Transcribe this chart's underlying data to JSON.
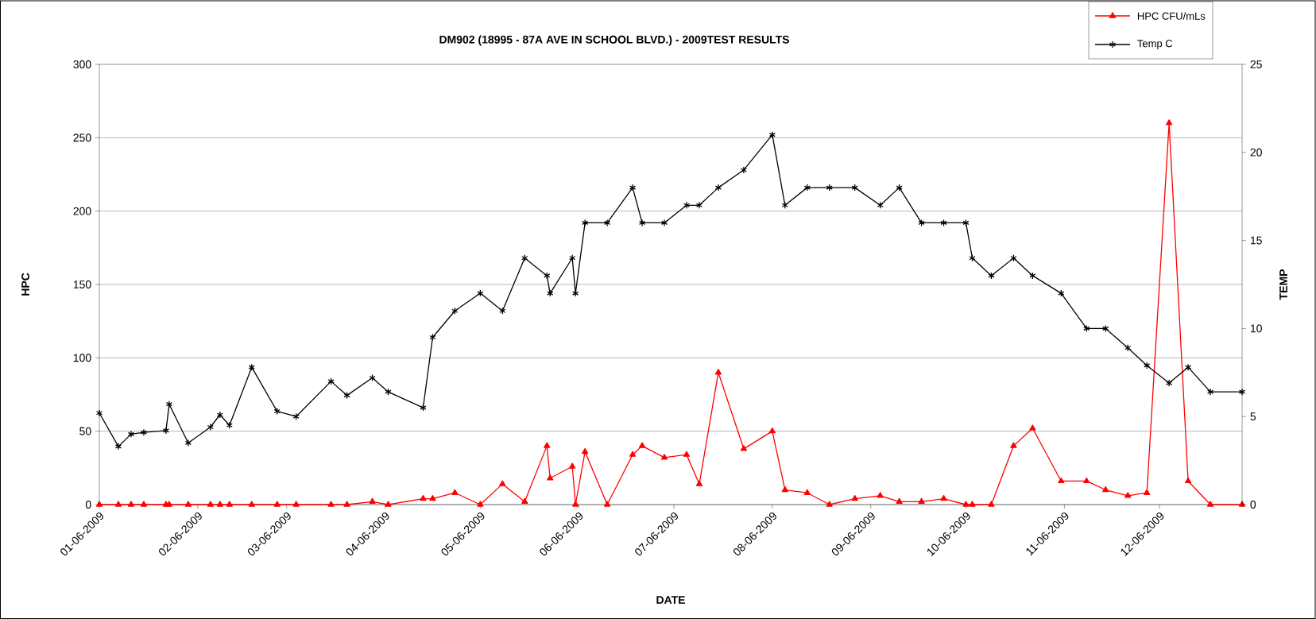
{
  "chart_data": {
    "type": "line",
    "title": "DM902 (18995 - 87A AVE IN SCHOOL BLVD.) - 2009TEST RESULTS",
    "xlabel": "DATE",
    "ylabel": "HPC",
    "y2label": "TEMP",
    "x": [
      "2009-01-06",
      "2009-01-12",
      "2009-01-16",
      "2009-01-20",
      "2009-01-27",
      "2009-01-28",
      "2009-02-03",
      "2009-02-10",
      "2009-02-13",
      "2009-02-16",
      "2009-02-23",
      "2009-03-03",
      "2009-03-09",
      "2009-03-20",
      "2009-03-25",
      "2009-04-02",
      "2009-04-07",
      "2009-04-18",
      "2009-04-21",
      "2009-04-28",
      "2009-05-06",
      "2009-05-13",
      "2009-05-20",
      "2009-05-27",
      "2009-05-28",
      "2009-06-04",
      "2009-06-05",
      "2009-06-08",
      "2009-06-15",
      "2009-06-23",
      "2009-06-26",
      "2009-07-03",
      "2009-07-10",
      "2009-07-14",
      "2009-07-20",
      "2009-07-28",
      "2009-08-06",
      "2009-08-10",
      "2009-08-17",
      "2009-08-24",
      "2009-09-01",
      "2009-09-09",
      "2009-09-15",
      "2009-09-22",
      "2009-09-29",
      "2009-10-06",
      "2009-10-08",
      "2009-10-14",
      "2009-10-21",
      "2009-10-27",
      "2009-11-05",
      "2009-11-13",
      "2009-11-19",
      "2009-11-26",
      "2009-12-02",
      "2009-12-09",
      "2009-12-15",
      "2009-12-22",
      "2010-01-01"
    ],
    "series": [
      {
        "name": "HPC CFU/mLs",
        "color": "#ff0000",
        "marker": "triangle",
        "values": [
          0,
          0,
          0,
          0,
          0,
          0,
          0,
          0,
          0,
          0,
          0,
          0,
          0,
          0,
          0,
          2,
          0,
          4,
          4,
          8,
          0,
          14,
          2,
          40,
          18,
          26,
          0,
          36,
          0,
          34,
          40,
          32,
          34,
          14,
          90,
          38,
          50,
          10,
          8,
          0,
          4,
          6,
          2,
          2,
          4,
          0,
          0,
          0,
          40,
          52,
          16,
          16,
          10,
          6,
          8,
          260,
          16,
          0,
          0
        ]
      },
      {
        "name": "Temp C",
        "color": "#000000",
        "marker": "cross",
        "axis": "y2",
        "values": [
          5.2,
          3.3,
          4.0,
          4.1,
          4.2,
          5.7,
          3.5,
          4.4,
          5.1,
          4.5,
          7.8,
          5.3,
          5.0,
          7.0,
          6.2,
          7.2,
          6.4,
          5.5,
          9.5,
          11,
          12,
          11,
          14,
          13,
          12,
          14,
          12,
          16,
          16,
          18,
          16,
          16,
          17,
          17,
          18,
          19,
          21,
          17,
          18,
          18,
          18,
          17,
          18,
          16,
          16,
          16,
          14,
          13,
          14,
          13,
          12,
          10,
          10,
          8.9,
          7.9,
          6.9,
          7.8,
          6.4,
          6.4
        ]
      }
    ],
    "xlim": [
      "2009-01-06",
      "2010-01-01"
    ],
    "xticks": [
      {
        "value": "2009-01-06",
        "label": "01-06-2009"
      },
      {
        "value": "2009-02-06",
        "label": "02-06-2009"
      },
      {
        "value": "2009-03-06",
        "label": "03-06-2009"
      },
      {
        "value": "2009-04-06",
        "label": "04-06-2009"
      },
      {
        "value": "2009-05-06",
        "label": "05-06-2009"
      },
      {
        "value": "2009-06-06",
        "label": "06-06-2009"
      },
      {
        "value": "2009-07-06",
        "label": "07-06-2009"
      },
      {
        "value": "2009-08-06",
        "label": "08-06-2009"
      },
      {
        "value": "2009-09-06",
        "label": "09-06-2009"
      },
      {
        "value": "2009-10-06",
        "label": "10-06-2009"
      },
      {
        "value": "2009-11-06",
        "label": "11-06-2009"
      },
      {
        "value": "2009-12-06",
        "label": "12-06-2009"
      }
    ],
    "ylim": [
      0,
      300
    ],
    "yticks": [
      0,
      50,
      100,
      150,
      200,
      250,
      300
    ],
    "y2lim": [
      0,
      25
    ],
    "y2ticks": [
      0,
      5,
      10,
      15,
      20,
      25
    ],
    "grid": "y",
    "legend": "top right",
    "line_style": "solid"
  }
}
